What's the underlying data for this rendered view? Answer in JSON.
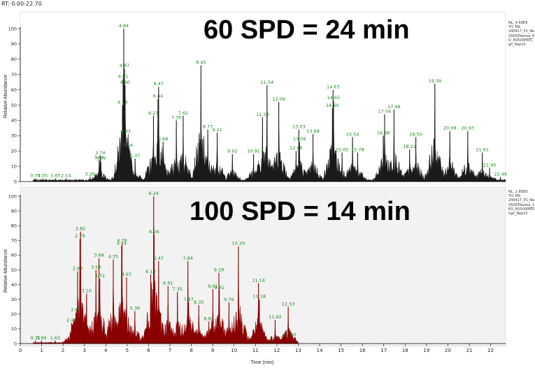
{
  "window": {
    "rt_range_label": "RT: 0.00-22.70"
  },
  "colors": {
    "panel1_trace": "#1a1a1a",
    "panel2_trace": "#8b0000",
    "peak_label": "#1a8a1a",
    "axis": "#000000"
  },
  "chart_data": [
    {
      "type": "line",
      "overlay_title": "60 SPD = 24 min",
      "ylabel": "Relative Abundance",
      "xlim": [
        0,
        22.7
      ],
      "ylim": [
        0,
        100
      ],
      "y_ticks": [
        0,
        10,
        20,
        30,
        40,
        50,
        60,
        70,
        80,
        90,
        100
      ],
      "grid": false,
      "side_info": [
        "NL: 4.69E9",
        "TIC  MS",
        "240417_P1_Ne",
        "Q500Plasma_6",
        "D_PO500PRTC",
        "gn_Rep10"
      ],
      "trace_color": "#1a1a1a",
      "peaks": [
        {
          "label": "0.70",
          "x": 0.7,
          "y": 2
        },
        {
          "label": "1.05",
          "x": 1.05,
          "y": 2
        },
        {
          "label": "1.65",
          "x": 1.65,
          "y": 2
        },
        {
          "label": "2.14",
          "x": 2.14,
          "y": 2
        },
        {
          "label": "3.26",
          "x": 3.26,
          "y": 3
        },
        {
          "label": "3.69",
          "x": 3.69,
          "y": 14
        },
        {
          "label": "3.74",
          "x": 3.74,
          "y": 17
        },
        {
          "label": "3.77",
          "x": 3.77,
          "y": 13
        },
        {
          "label": "4.78",
          "x": 4.78,
          "y": 50
        },
        {
          "label": "4.81",
          "x": 4.81,
          "y": 67
        },
        {
          "label": "4.84",
          "x": 4.84,
          "y": 100
        },
        {
          "label": "4.87",
          "x": 4.87,
          "y": 74
        },
        {
          "label": "4.90",
          "x": 4.9,
          "y": 63
        },
        {
          "label": "4.93",
          "x": 4.93,
          "y": 31
        },
        {
          "label": "5.04",
          "x": 5.04,
          "y": 22
        },
        {
          "label": "5.37",
          "x": 5.37,
          "y": 15
        },
        {
          "label": "6.23",
          "x": 6.23,
          "y": 43
        },
        {
          "label": "6.44",
          "x": 6.44,
          "y": 54
        },
        {
          "label": "6.47",
          "x": 6.47,
          "y": 62
        },
        {
          "label": "6.68",
          "x": 6.68,
          "y": 26
        },
        {
          "label": "7.30",
          "x": 7.3,
          "y": 40
        },
        {
          "label": "7.62",
          "x": 7.62,
          "y": 43
        },
        {
          "label": "8.45",
          "x": 8.45,
          "y": 76
        },
        {
          "label": "8.77",
          "x": 8.77,
          "y": 34
        },
        {
          "label": "9.21",
          "x": 9.21,
          "y": 32
        },
        {
          "label": "9.92",
          "x": 9.92,
          "y": 18
        },
        {
          "label": "10.91",
          "x": 10.91,
          "y": 18
        },
        {
          "label": "11.33",
          "x": 11.33,
          "y": 42
        },
        {
          "label": "11.54",
          "x": 11.54,
          "y": 63
        },
        {
          "label": "12.09",
          "x": 12.09,
          "y": 52
        },
        {
          "label": "12.90",
          "x": 12.9,
          "y": 20
        },
        {
          "label": "13.03",
          "x": 13.03,
          "y": 34
        },
        {
          "label": "13.06",
          "x": 13.06,
          "y": 26
        },
        {
          "label": "13.69",
          "x": 13.69,
          "y": 31
        },
        {
          "label": "14.60",
          "x": 14.6,
          "y": 48
        },
        {
          "label": "14.63",
          "x": 14.63,
          "y": 60
        },
        {
          "label": "14.65",
          "x": 14.65,
          "y": 53
        },
        {
          "label": "15.05",
          "x": 15.05,
          "y": 19
        },
        {
          "label": "15.54",
          "x": 15.54,
          "y": 29
        },
        {
          "label": "15.78",
          "x": 15.78,
          "y": 19
        },
        {
          "label": "16.98",
          "x": 16.98,
          "y": 30
        },
        {
          "label": "17.04",
          "x": 17.04,
          "y": 44
        },
        {
          "label": "17.48",
          "x": 17.48,
          "y": 47
        },
        {
          "label": "18.21",
          "x": 18.21,
          "y": 21
        },
        {
          "label": "18.50",
          "x": 18.5,
          "y": 29
        },
        {
          "label": "19.39",
          "x": 19.39,
          "y": 64
        },
        {
          "label": "20.09",
          "x": 20.09,
          "y": 33
        },
        {
          "label": "20.93",
          "x": 20.93,
          "y": 33
        },
        {
          "label": "21.61",
          "x": 21.61,
          "y": 19
        },
        {
          "label": "21.95",
          "x": 21.95,
          "y": 9
        },
        {
          "label": "22.46",
          "x": 22.46,
          "y": 3
        }
      ]
    },
    {
      "type": "line",
      "overlay_title": "100 SPD = 14 min",
      "xlabel": "Time (min)",
      "ylabel": "Relative Abundance",
      "xlim": [
        0,
        22.7
      ],
      "ylim": [
        0,
        100
      ],
      "x_ticks": [
        0,
        1,
        2,
        3,
        4,
        5,
        6,
        7,
        8,
        9,
        10,
        11,
        12,
        13,
        14,
        15,
        16,
        17,
        18,
        19,
        20,
        21,
        22
      ],
      "y_ticks": [
        0,
        10,
        20,
        30,
        40,
        50,
        60,
        70,
        80,
        90,
        100
      ],
      "grid": false,
      "side_info": [
        "NL: 2.85E9",
        "TIC  MS",
        "240417_P1_Ne",
        "Q500Plasma_1",
        "PO_PO500PRTC",
        "lign_Rep10"
      ],
      "trace_color": "#8b0000",
      "peaks": [
        {
          "label": "0.71",
          "x": 0.71,
          "y": 2
        },
        {
          "label": "0.99",
          "x": 0.99,
          "y": 2
        },
        {
          "label": "1.63",
          "x": 1.63,
          "y": 2
        },
        {
          "label": "2.40",
          "x": 2.4,
          "y": 14
        },
        {
          "label": "2.60",
          "x": 2.6,
          "y": 21
        },
        {
          "label": "2.68",
          "x": 2.68,
          "y": 49
        },
        {
          "label": "2.79",
          "x": 2.79,
          "y": 71
        },
        {
          "label": "2.82",
          "x": 2.82,
          "y": 76
        },
        {
          "label": "3.10",
          "x": 3.1,
          "y": 34
        },
        {
          "label": "3.54",
          "x": 3.54,
          "y": 50
        },
        {
          "label": "3.68",
          "x": 3.68,
          "y": 58
        },
        {
          "label": "3.72",
          "x": 3.72,
          "y": 44
        },
        {
          "label": "4.35",
          "x": 4.35,
          "y": 57
        },
        {
          "label": "4.74",
          "x": 4.74,
          "y": 66
        },
        {
          "label": "4.76",
          "x": 4.76,
          "y": 68
        },
        {
          "label": "4.97",
          "x": 4.97,
          "y": 45
        },
        {
          "label": "5.36",
          "x": 5.36,
          "y": 22
        },
        {
          "label": "6.10",
          "x": 6.1,
          "y": 47
        },
        {
          "label": "6.24",
          "x": 6.24,
          "y": 100
        },
        {
          "label": "6.26",
          "x": 6.26,
          "y": 74
        },
        {
          "label": "6.47",
          "x": 6.47,
          "y": 56
        },
        {
          "label": "6.91",
          "x": 6.91,
          "y": 39
        },
        {
          "label": "7.35",
          "x": 7.35,
          "y": 35
        },
        {
          "label": "7.84",
          "x": 7.84,
          "y": 56
        },
        {
          "label": "7.87",
          "x": 7.87,
          "y": 28
        },
        {
          "label": "8.35",
          "x": 8.35,
          "y": 26
        },
        {
          "label": "8.82",
          "x": 8.82,
          "y": 15
        },
        {
          "label": "9.01",
          "x": 9.01,
          "y": 37
        },
        {
          "label": "9.29",
          "x": 9.29,
          "y": 48
        },
        {
          "label": "9.31",
          "x": 9.31,
          "y": 36
        },
        {
          "label": "9.76",
          "x": 9.76,
          "y": 28
        },
        {
          "label": "10.20",
          "x": 10.2,
          "y": 66
        },
        {
          "label": "11.14",
          "x": 11.14,
          "y": 41
        },
        {
          "label": "11.18",
          "x": 11.18,
          "y": 30
        },
        {
          "label": "11.92",
          "x": 11.92,
          "y": 16
        },
        {
          "label": "12.53",
          "x": 12.53,
          "y": 25
        },
        {
          "label": "12.60",
          "x": 12.6,
          "y": 4
        }
      ]
    }
  ]
}
